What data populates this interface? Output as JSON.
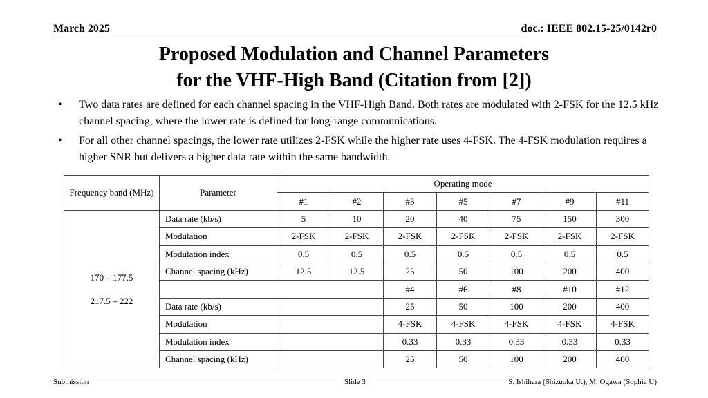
{
  "header": {
    "date": "March 2025",
    "doc_id": "doc.: IEEE 802.15-25/0142r0"
  },
  "title": {
    "line1": "Proposed Modulation and Channel Parameters",
    "line2": "for the VHF-High Band  (Citation from [2])"
  },
  "bullets": [
    {
      "marker": "•",
      "text": "Two data rates are defined for each channel spacing in the VHF-High Band. Both rates are modulated with 2-FSK for the 12.5 kHz channel spacing, where the lower rate is defined for long-range communications."
    },
    {
      "marker": "•",
      "text": "For all other channel spacings, the lower rate utilizes 2-FSK while the higher rate uses 4-FSK. The 4-FSK modulation requires a higher SNR but delivers a higher data rate within the same bandwidth."
    }
  ],
  "table": {
    "head": {
      "frequency_band": "Frequency band (MHz)",
      "parameter": "Parameter",
      "operating_mode": "Operating mode",
      "modes_a": [
        "#1",
        "#2",
        "#3",
        "#5",
        "#7",
        "#9",
        "#11"
      ]
    },
    "bands": {
      "band1": "170 – 177.5",
      "band2": "217.5 – 222"
    },
    "rows_a": [
      {
        "label": "Data rate (kb/s)",
        "values": [
          "5",
          "10",
          "20",
          "40",
          "75",
          "150",
          "300"
        ]
      },
      {
        "label": "Modulation",
        "values": [
          "2-FSK",
          "2-FSK",
          "2-FSK",
          "2-FSK",
          "2-FSK",
          "2-FSK",
          "2-FSK"
        ]
      },
      {
        "label": "Modulation index",
        "values": [
          "0.5",
          "0.5",
          "0.5",
          "0.5",
          "0.5",
          "0.5",
          "0.5"
        ]
      },
      {
        "label": "Channel spacing (kHz)",
        "values": [
          "12.5",
          "12.5",
          "25",
          "50",
          "100",
          "200",
          "400"
        ]
      }
    ],
    "modes_b": [
      "#4",
      "#6",
      "#8",
      "#10",
      "#12"
    ],
    "rows_b": [
      {
        "label": "Data rate (kb/s)",
        "values": [
          "25",
          "50",
          "100",
          "200",
          "400"
        ]
      },
      {
        "label": "Modulation",
        "values": [
          "4-FSK",
          "4-FSK",
          "4-FSK",
          "4-FSK",
          "4-FSK"
        ]
      },
      {
        "label": "Modulation index",
        "values": [
          "0.33",
          "0.33",
          "0.33",
          "0.33",
          "0.33"
        ]
      },
      {
        "label": "Channel spacing (kHz)",
        "values": [
          "25",
          "50",
          "100",
          "200",
          "400"
        ]
      }
    ]
  },
  "footer": {
    "left": "Submission",
    "center": "Slide 3",
    "right": "S. Ishihara (Shizuoka U.), M. Ogawa (Sophia U)"
  }
}
